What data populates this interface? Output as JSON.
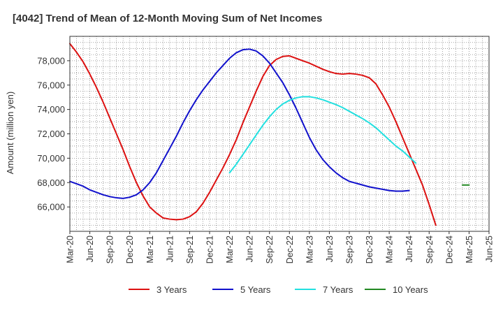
{
  "chart_data": {
    "type": "line",
    "title": "[4042]  Trend of Mean of 12-Month Moving Sum of Net Incomes",
    "ylabel": "Amount (million yen)",
    "xlabel": "",
    "x_start": "Mar-20",
    "ylim": [
      64000,
      80000
    ],
    "yticks": [
      66000,
      68000,
      70000,
      72000,
      74000,
      76000,
      78000
    ],
    "ytick_labels": [
      "66,000",
      "68,000",
      "70,000",
      "72,000",
      "74,000",
      "76,000",
      "78,000"
    ],
    "xtick_labels": [
      "Mar-20",
      "Jun-20",
      "Sep-20",
      "Dec-20",
      "Mar-21",
      "Jun-21",
      "Sep-21",
      "Dec-21",
      "Mar-22",
      "Jun-22",
      "Sep-22",
      "Dec-22",
      "Mar-23",
      "Jun-23",
      "Sep-23",
      "Dec-23",
      "Mar-24",
      "Jun-24",
      "Sep-24",
      "Dec-24",
      "Mar-25",
      "Jun-25"
    ],
    "grid": true,
    "legend_position": "bottom",
    "series": [
      {
        "name": "3 Years",
        "color": "#dd1111",
        "start": "Mar-20",
        "values": [
          79400,
          78700,
          77900,
          76900,
          75800,
          74600,
          73300,
          72000,
          70700,
          69300,
          68000,
          66900,
          66000,
          65500,
          65100,
          65000,
          64950,
          65000,
          65200,
          65600,
          66300,
          67200,
          68200,
          69200,
          70300,
          71500,
          72900,
          74200,
          75500,
          76700,
          77600,
          78100,
          78350,
          78400,
          78200,
          78000,
          77800,
          77550,
          77300,
          77100,
          76950,
          76900,
          76950,
          76900,
          76800,
          76600,
          76100,
          75200,
          74200,
          73000,
          71700,
          70400,
          69100,
          67800,
          66200,
          64500
        ]
      },
      {
        "name": "5 Years",
        "color": "#1111cc",
        "start": "Mar-20",
        "values": [
          68100,
          67900,
          67700,
          67400,
          67200,
          67000,
          66850,
          66750,
          66700,
          66800,
          67000,
          67400,
          68000,
          68800,
          69800,
          70800,
          71800,
          72900,
          73900,
          74800,
          75600,
          76300,
          77000,
          77600,
          78200,
          78650,
          78900,
          78950,
          78800,
          78400,
          77800,
          77000,
          76200,
          75200,
          74100,
          72900,
          71700,
          70700,
          69900,
          69300,
          68800,
          68400,
          68100,
          67950,
          67800,
          67650,
          67550,
          67450,
          67350,
          67300,
          67300,
          67350
        ]
      },
      {
        "name": "7 Years",
        "color": "#22e0e0",
        "start": "Mar-22",
        "values": [
          68800,
          69500,
          70300,
          71100,
          71900,
          72700,
          73400,
          74000,
          74450,
          74750,
          74950,
          75050,
          75050,
          74950,
          74800,
          74600,
          74400,
          74150,
          73850,
          73550,
          73250,
          72900,
          72500,
          72000,
          71500,
          71000,
          70600,
          70100,
          69600
        ]
      },
      {
        "name": "10 Years",
        "color": "#228822",
        "start": "Feb-25",
        "values": [
          67800,
          67800
        ]
      }
    ]
  }
}
